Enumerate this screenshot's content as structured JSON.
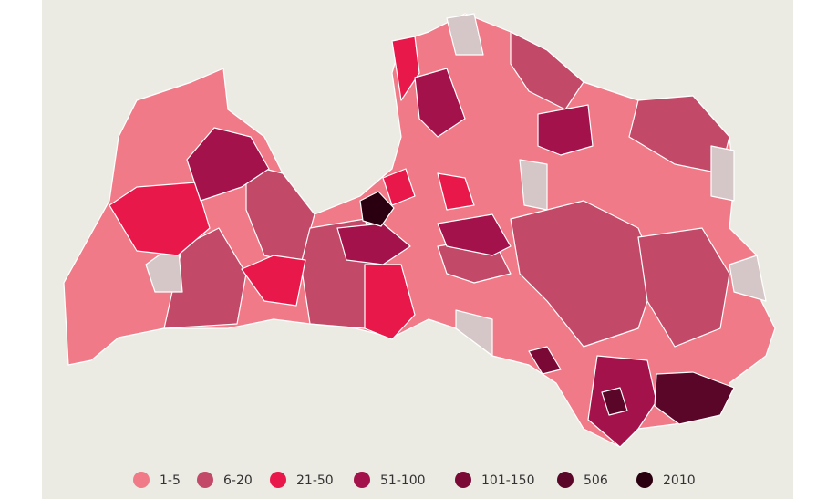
{
  "legend": {
    "items": [
      {
        "label": "1-5",
        "color": "#f07a87"
      },
      {
        "label": "6-20",
        "color": "#c24a68"
      },
      {
        "label": "21-50",
        "color": "#e8194a"
      },
      {
        "label": "51-100",
        "color": "#a3124a"
      },
      {
        "label": "101-150",
        "color": "#7a0a35"
      },
      {
        "label": "506",
        "color": "#5a0628"
      },
      {
        "label": "2010",
        "color": "#2a0010"
      }
    ]
  }
}
